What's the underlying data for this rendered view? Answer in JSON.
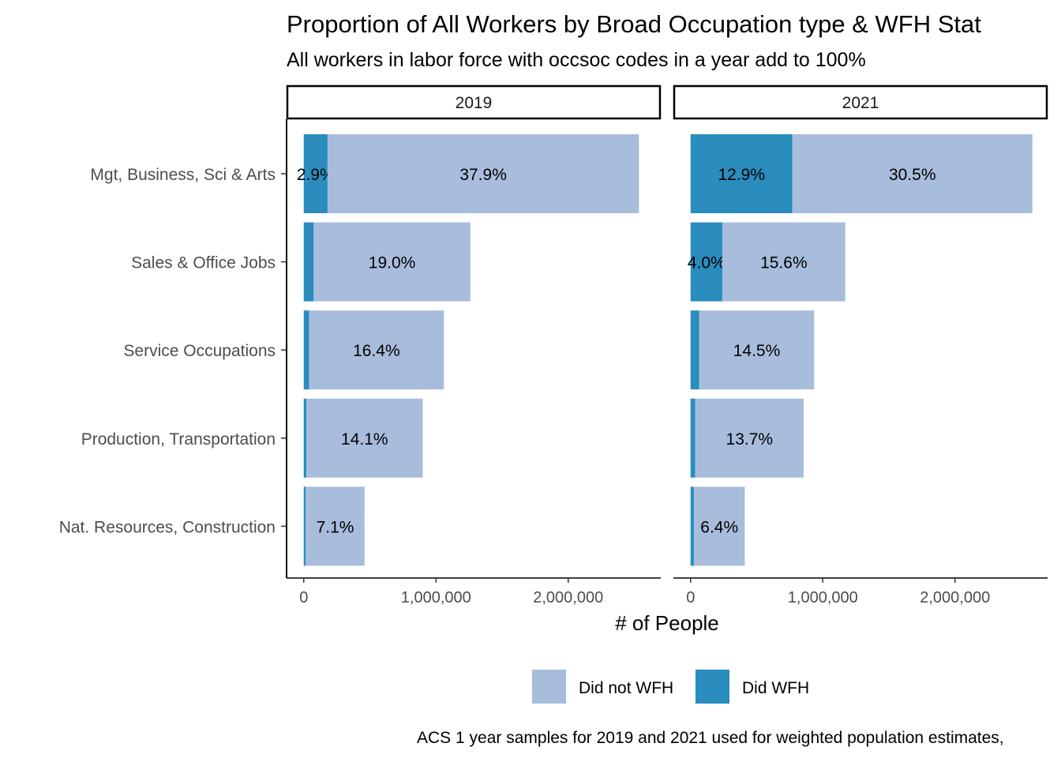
{
  "chart_data": {
    "type": "bar",
    "orientation": "horizontal",
    "stacked": true,
    "title": "Proportion of All Workers by Broad Occupation type & WFH Stat",
    "subtitle": "All workers in labor force with occsoc codes in a year add to 100%",
    "xlabel": "# of People",
    "ylabel": "",
    "caption": "ACS 1 year samples for 2019 and 2021 used for weighted population estimates,",
    "categories": [
      "Mgt, Business, Sci & Arts",
      "Sales & Office Jobs",
      "Service Occupations",
      "Production, Transportation",
      "Nat. Resources, Construction"
    ],
    "xlim": [
      -130000,
      2700000
    ],
    "x_ticks": [
      0,
      1000000,
      2000000
    ],
    "x_tick_labels": [
      "0",
      "1,000,000",
      "2,000,000"
    ],
    "grid": false,
    "legend": {
      "position": "bottom",
      "entries": [
        {
          "label": "Did not WFH",
          "color": "#a8bddc"
        },
        {
          "label": "Did WFH",
          "color": "#2b8cbe"
        }
      ]
    },
    "panels": [
      {
        "label": "2019",
        "series": [
          {
            "name": "Did WFH",
            "values": [
              180000,
              75000,
              40000,
              20000,
              15000
            ],
            "labels": [
              "2.9%",
              "",
              "",
              "",
              ""
            ]
          },
          {
            "name": "Did not WFH",
            "values": [
              2355000,
              1185000,
              1020000,
              880000,
              445000
            ],
            "labels": [
              "37.9%",
              "19.0%",
              "16.4%",
              "14.1%",
              "7.1%"
            ]
          }
        ]
      },
      {
        "label": "2021",
        "series": [
          {
            "name": "Did WFH",
            "values": [
              770000,
              240000,
              65000,
              35000,
              25000
            ],
            "labels": [
              "12.9%",
              "4.0%",
              "",
              "",
              ""
            ]
          },
          {
            "name": "Did not WFH",
            "values": [
              1815000,
              930000,
              870000,
              820000,
              385000
            ],
            "labels": [
              "30.5%",
              "15.6%",
              "14.5%",
              "13.7%",
              "6.4%"
            ]
          }
        ]
      }
    ]
  }
}
